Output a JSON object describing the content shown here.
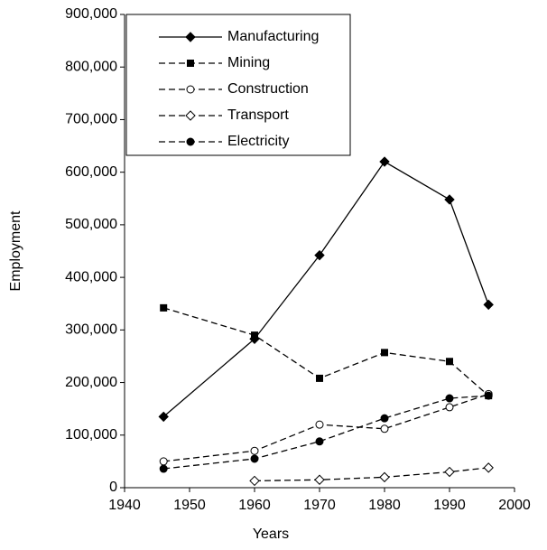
{
  "chart_data": {
    "type": "line",
    "x_label": "Years",
    "y_label": "Employment",
    "x": [
      1946,
      1960,
      1970,
      1980,
      1990,
      1996
    ],
    "series": [
      {
        "name": "Manufacturing",
        "color": "#000000",
        "marker": "diamond",
        "filled": true,
        "dashed": false,
        "values": [
          135000,
          283000,
          442000,
          620000,
          548000,
          348000
        ]
      },
      {
        "name": "Mining",
        "color": "#000000",
        "marker": "square",
        "filled": true,
        "dashed": true,
        "values": [
          342000,
          290000,
          208000,
          257000,
          240000,
          175000
        ]
      },
      {
        "name": "Construction",
        "color": "#000000",
        "marker": "circle",
        "filled": false,
        "dashed": true,
        "values": [
          50000,
          70000,
          120000,
          112000,
          153000,
          178000
        ]
      },
      {
        "name": "Transport",
        "color": "#000000",
        "marker": "diamond",
        "filled": false,
        "dashed": true,
        "values": [
          null,
          13000,
          15000,
          20000,
          30000,
          38000
        ]
      },
      {
        "name": "Electricity",
        "color": "#000000",
        "marker": "circle",
        "filled": true,
        "dashed": true,
        "values": [
          36000,
          55000,
          88000,
          132000,
          170000,
          175000
        ]
      }
    ],
    "xlim": [
      1940,
      2000
    ],
    "xticks": [
      1940,
      1950,
      1960,
      1970,
      1980,
      1990,
      2000
    ],
    "ylim": [
      0,
      900000
    ],
    "yticks": [
      0,
      {
        "value": 100000,
        "label": "100,000"
      },
      {
        "value": 200000,
        "label": "200,000"
      },
      {
        "value": 300000,
        "label": "300,000"
      },
      {
        "value": 400000,
        "label": "400,000"
      },
      {
        "value": 500000,
        "label": "500,000"
      },
      {
        "value": 600000,
        "label": "600,000"
      },
      {
        "value": 700000,
        "label": "700,000"
      },
      {
        "value": 800000,
        "label": "800,000"
      },
      {
        "value": 900000,
        "label": "900,000"
      }
    ],
    "grid": false,
    "legend": "upper left"
  }
}
